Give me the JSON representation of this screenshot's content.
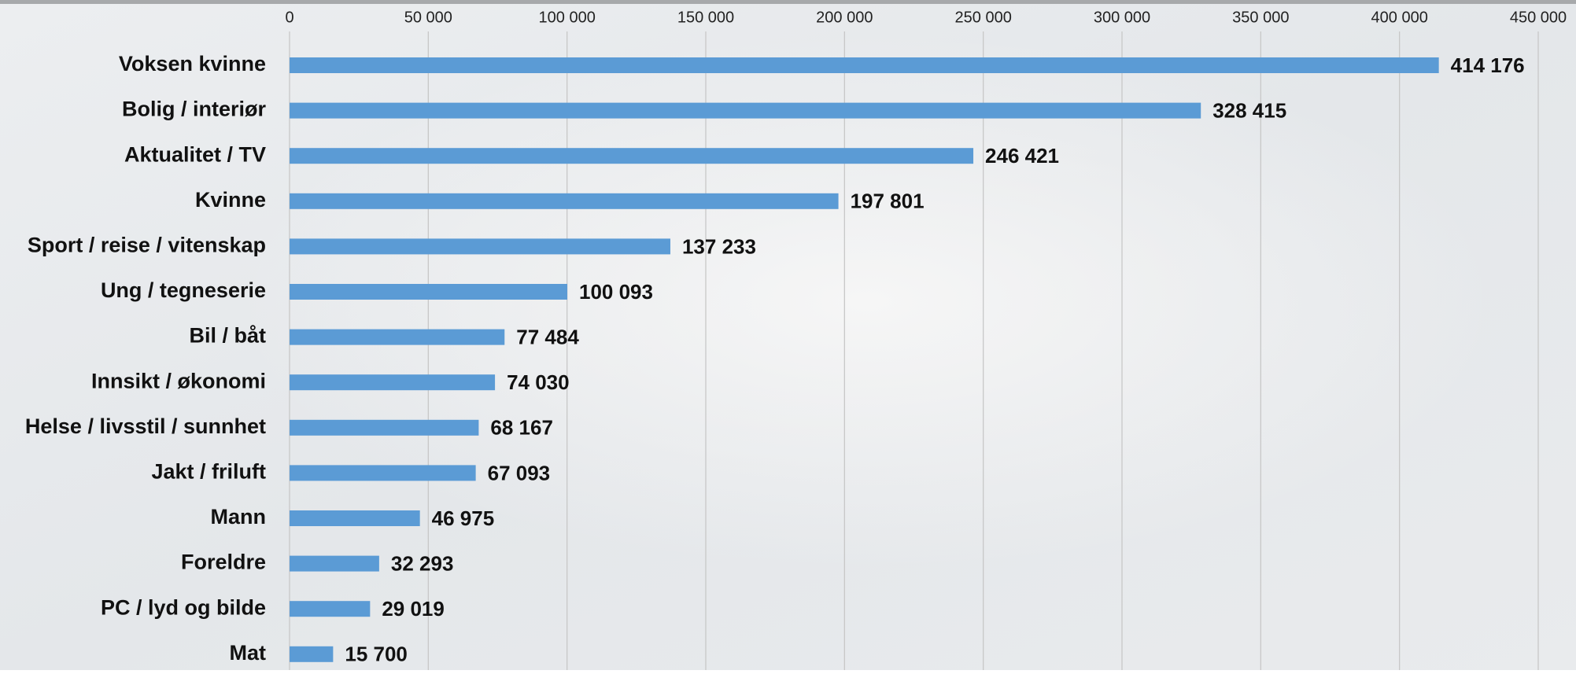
{
  "chart_data": {
    "type": "bar",
    "orientation": "horizontal",
    "categories": [
      "Voksen kvinne",
      "Bolig / interiør",
      "Aktualitet / TV",
      "Kvinne",
      "Sport / reise / vitenskap",
      "Ung / tegneserie",
      "Bil / båt",
      "Innsikt / økonomi",
      "Helse / livsstil / sunnhet",
      "Jakt / friluft",
      "Mann",
      "Foreldre",
      "PC / lyd og bilde",
      "Mat"
    ],
    "values": [
      414176,
      328415,
      246421,
      197801,
      137233,
      100093,
      77484,
      74030,
      68167,
      67093,
      46975,
      32293,
      29019,
      15700
    ],
    "value_labels": [
      "414 176",
      "328 415",
      "246 421",
      "197 801",
      "137 233",
      "100 093",
      "77 484",
      "74 030",
      "68 167",
      "67 093",
      "46 975",
      "32 293",
      "29 019",
      "15 700"
    ],
    "color": "#5b9bd5",
    "xlim": [
      0,
      450000
    ],
    "xticks": [
      0,
      {
        "value": 50000,
        "label": "50 000"
      },
      {
        "value": 100000,
        "label": "100 000"
      },
      {
        "value": 150000,
        "label": "150 000"
      },
      {
        "value": 200000,
        "label": "200 000"
      },
      {
        "value": 250000,
        "label": "250 000"
      },
      {
        "value": 300000,
        "label": "300 000"
      },
      {
        "value": 350000,
        "label": "350 000"
      },
      {
        "value": 400000,
        "label": "400 000"
      },
      {
        "value": 450000,
        "label": "450 000"
      }
    ],
    "grid": true
  }
}
